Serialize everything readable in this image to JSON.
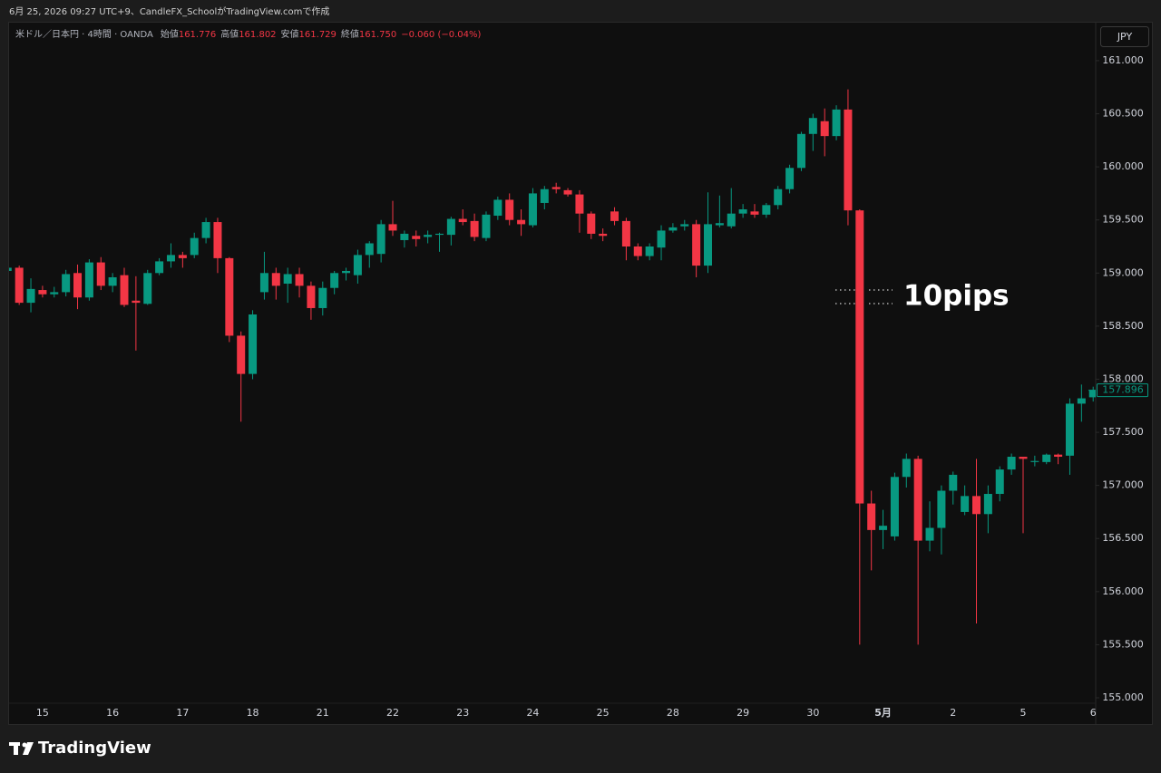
{
  "attribution": "6月 25, 2026 09:27 UTC+9、CandleFX_SchoolがTradingView.comで作成",
  "logo": "TradingView",
  "currency_button": "JPY",
  "chart_data": {
    "type": "candlestick",
    "title": "米ドル／日本円 · 4時間 · OANDA",
    "legend": [
      {
        "label": "始値",
        "value": "161.776"
      },
      {
        "label": "高値",
        "value": "161.802"
      },
      {
        "label": "安値",
        "value": "161.729"
      },
      {
        "label": "終値",
        "value": "161.750"
      }
    ],
    "change": "−0.060 (−0.04%)",
    "annotation": "10pips",
    "up_color": "#089981",
    "down_color": "#f23645",
    "last_price": 157.896,
    "ylim": [
      154.744,
      161.358
    ],
    "yticks": [
      {
        "value": 155,
        "label": "155.000"
      },
      {
        "value": 155.5,
        "label": "155.500"
      },
      {
        "value": 156,
        "label": "156.000"
      },
      {
        "value": 156.5,
        "label": "156.500"
      },
      {
        "value": 157,
        "label": "157.000"
      },
      {
        "value": 157.5,
        "label": "157.500"
      },
      {
        "value": 158,
        "label": "158.000"
      },
      {
        "value": 158.5,
        "label": "158.500"
      },
      {
        "value": 159,
        "label": "159.000"
      },
      {
        "value": 159.5,
        "label": "159.500"
      },
      {
        "value": 160,
        "label": "160.000"
      },
      {
        "value": 160.5,
        "label": "160.500"
      },
      {
        "value": 161,
        "label": "161.000"
      }
    ],
    "categories": [
      null,
      null,
      null,
      "15",
      null,
      null,
      null,
      null,
      null,
      "16",
      null,
      null,
      null,
      null,
      null,
      "17",
      null,
      null,
      null,
      null,
      null,
      "18",
      null,
      null,
      null,
      null,
      null,
      "21",
      null,
      null,
      null,
      null,
      null,
      "22",
      null,
      null,
      null,
      null,
      null,
      "23",
      null,
      null,
      null,
      null,
      null,
      "24",
      null,
      null,
      null,
      null,
      null,
      "25",
      null,
      null,
      null,
      null,
      null,
      "28",
      null,
      null,
      null,
      null,
      null,
      "29",
      null,
      null,
      null,
      null,
      null,
      "30",
      null,
      null,
      null,
      null,
      null,
      "5月",
      null,
      null,
      null,
      null,
      null,
      "2",
      null,
      null,
      null,
      null,
      null,
      "5",
      null,
      null,
      null,
      null,
      null,
      "6"
    ],
    "open": [
      159.02,
      159.05,
      158.72,
      158.84,
      158.8,
      158.82,
      159.0,
      158.77,
      159.1,
      158.88,
      158.98,
      158.74,
      158.71,
      159.0,
      159.11,
      159.17,
      159.17,
      159.33,
      159.48,
      159.14,
      158.41,
      158.05,
      158.82,
      159.0,
      158.9,
      158.99,
      158.88,
      158.67,
      158.86,
      159.0,
      158.98,
      159.17,
      159.18,
      159.46,
      159.31,
      159.35,
      159.34,
      159.36,
      159.36,
      159.51,
      159.49,
      159.33,
      159.54,
      159.69,
      159.5,
      159.45,
      159.66,
      159.81,
      159.78,
      159.74,
      159.56,
      159.37,
      159.58,
      159.49,
      159.25,
      159.16,
      159.24,
      159.4,
      159.44,
      159.46,
      159.07,
      159.45,
      159.44,
      159.56,
      159.58,
      159.55,
      159.64,
      159.79,
      159.99,
      160.31,
      160.43,
      160.29,
      160.54,
      159.59,
      156.83,
      156.58,
      156.52,
      157.08,
      157.25,
      156.48,
      156.6,
      156.95,
      156.75,
      156.9,
      156.73,
      156.92,
      157.15,
      157.27,
      157.22,
      157.22,
      157.29,
      157.28,
      157.77,
      157.83
    ],
    "high": [
      159.06,
      159.07,
      158.95,
      158.88,
      158.87,
      159.03,
      159.08,
      159.13,
      159.15,
      159.0,
      159.05,
      158.97,
      159.03,
      159.14,
      159.28,
      159.2,
      159.38,
      159.52,
      159.52,
      159.15,
      158.45,
      158.65,
      159.2,
      159.05,
      159.05,
      159.05,
      158.92,
      158.92,
      159.02,
      159.05,
      159.22,
      159.3,
      159.5,
      159.68,
      159.4,
      159.4,
      159.4,
      159.38,
      159.53,
      159.6,
      159.56,
      159.58,
      159.72,
      159.75,
      159.6,
      159.8,
      159.82,
      159.85,
      159.8,
      159.78,
      159.58,
      159.42,
      159.62,
      159.52,
      159.28,
      159.28,
      159.45,
      159.47,
      159.5,
      159.5,
      159.76,
      159.73,
      159.8,
      159.65,
      159.65,
      159.66,
      159.82,
      160.02,
      160.33,
      160.5,
      160.55,
      160.58,
      160.73,
      159.6,
      156.95,
      156.77,
      157.12,
      157.3,
      157.28,
      156.85,
      157.0,
      157.13,
      157.0,
      157.25,
      157.0,
      157.18,
      157.3,
      157.27,
      157.28,
      157.3,
      157.3,
      157.82,
      157.95,
      157.93
    ],
    "low": [
      159.0,
      158.7,
      158.63,
      158.77,
      158.77,
      158.78,
      158.66,
      158.74,
      158.84,
      158.82,
      158.68,
      158.27,
      158.7,
      158.98,
      159.05,
      159.05,
      159.14,
      159.28,
      159.0,
      158.35,
      157.6,
      158.0,
      158.75,
      158.75,
      158.72,
      158.77,
      158.56,
      158.6,
      158.8,
      158.93,
      158.9,
      159.05,
      159.1,
      159.35,
      159.24,
      159.25,
      159.28,
      159.2,
      159.26,
      159.45,
      159.3,
      159.3,
      159.5,
      159.45,
      159.35,
      159.43,
      159.6,
      159.75,
      159.72,
      159.38,
      159.32,
      159.3,
      159.45,
      159.12,
      159.12,
      159.12,
      159.12,
      159.38,
      159.4,
      158.96,
      159.0,
      159.43,
      159.42,
      159.52,
      159.52,
      159.52,
      159.6,
      159.75,
      159.96,
      160.15,
      160.1,
      160.25,
      159.45,
      155.5,
      156.2,
      156.4,
      156.48,
      156.98,
      155.5,
      156.38,
      156.35,
      156.82,
      156.72,
      155.7,
      156.55,
      156.85,
      157.1,
      156.55,
      157.18,
      157.2,
      157.2,
      157.1,
      157.6,
      157.79
    ],
    "close": [
      159.05,
      158.72,
      158.85,
      158.8,
      158.82,
      158.99,
      158.77,
      159.1,
      158.88,
      158.96,
      158.7,
      158.72,
      159.0,
      159.11,
      159.17,
      159.14,
      159.33,
      159.48,
      159.14,
      158.41,
      158.05,
      158.61,
      159.0,
      158.88,
      158.99,
      158.88,
      158.67,
      158.86,
      159.0,
      159.02,
      159.17,
      159.28,
      159.46,
      159.4,
      159.37,
      159.32,
      159.36,
      159.37,
      159.51,
      159.48,
      159.34,
      159.55,
      159.69,
      159.5,
      159.46,
      159.75,
      159.79,
      159.79,
      159.74,
      159.56,
      159.37,
      159.35,
      159.49,
      159.25,
      159.16,
      159.25,
      159.4,
      159.43,
      159.46,
      159.07,
      159.46,
      159.47,
      159.56,
      159.6,
      159.55,
      159.64,
      159.79,
      159.99,
      160.31,
      160.46,
      160.29,
      160.54,
      159.59,
      156.83,
      156.58,
      156.62,
      157.08,
      157.25,
      156.48,
      156.6,
      156.95,
      157.1,
      156.9,
      156.73,
      156.92,
      157.15,
      157.27,
      157.25,
      157.23,
      157.29,
      157.27,
      157.77,
      157.82,
      157.9
    ]
  }
}
